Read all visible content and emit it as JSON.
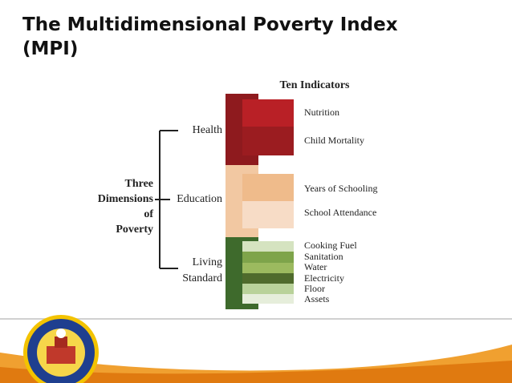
{
  "title": "The Multidimensional Poverty Index (MPI)",
  "diagram": {
    "heading": "Ten Indicators",
    "root": [
      "Three",
      "Dimensions",
      "of",
      "Poverty"
    ],
    "dimensions": [
      {
        "label": [
          "Health"
        ],
        "indicators": [
          "Nutrition",
          "Child Mortality"
        ]
      },
      {
        "label": [
          "Education"
        ],
        "indicators": [
          "Years of Schooling",
          "School Attendance"
        ]
      },
      {
        "label": [
          "Living",
          "Standard"
        ],
        "indicators": [
          "Cooking Fuel",
          "Sanitation",
          "Water",
          "Electricity",
          "Floor",
          "Assets"
        ]
      }
    ]
  }
}
